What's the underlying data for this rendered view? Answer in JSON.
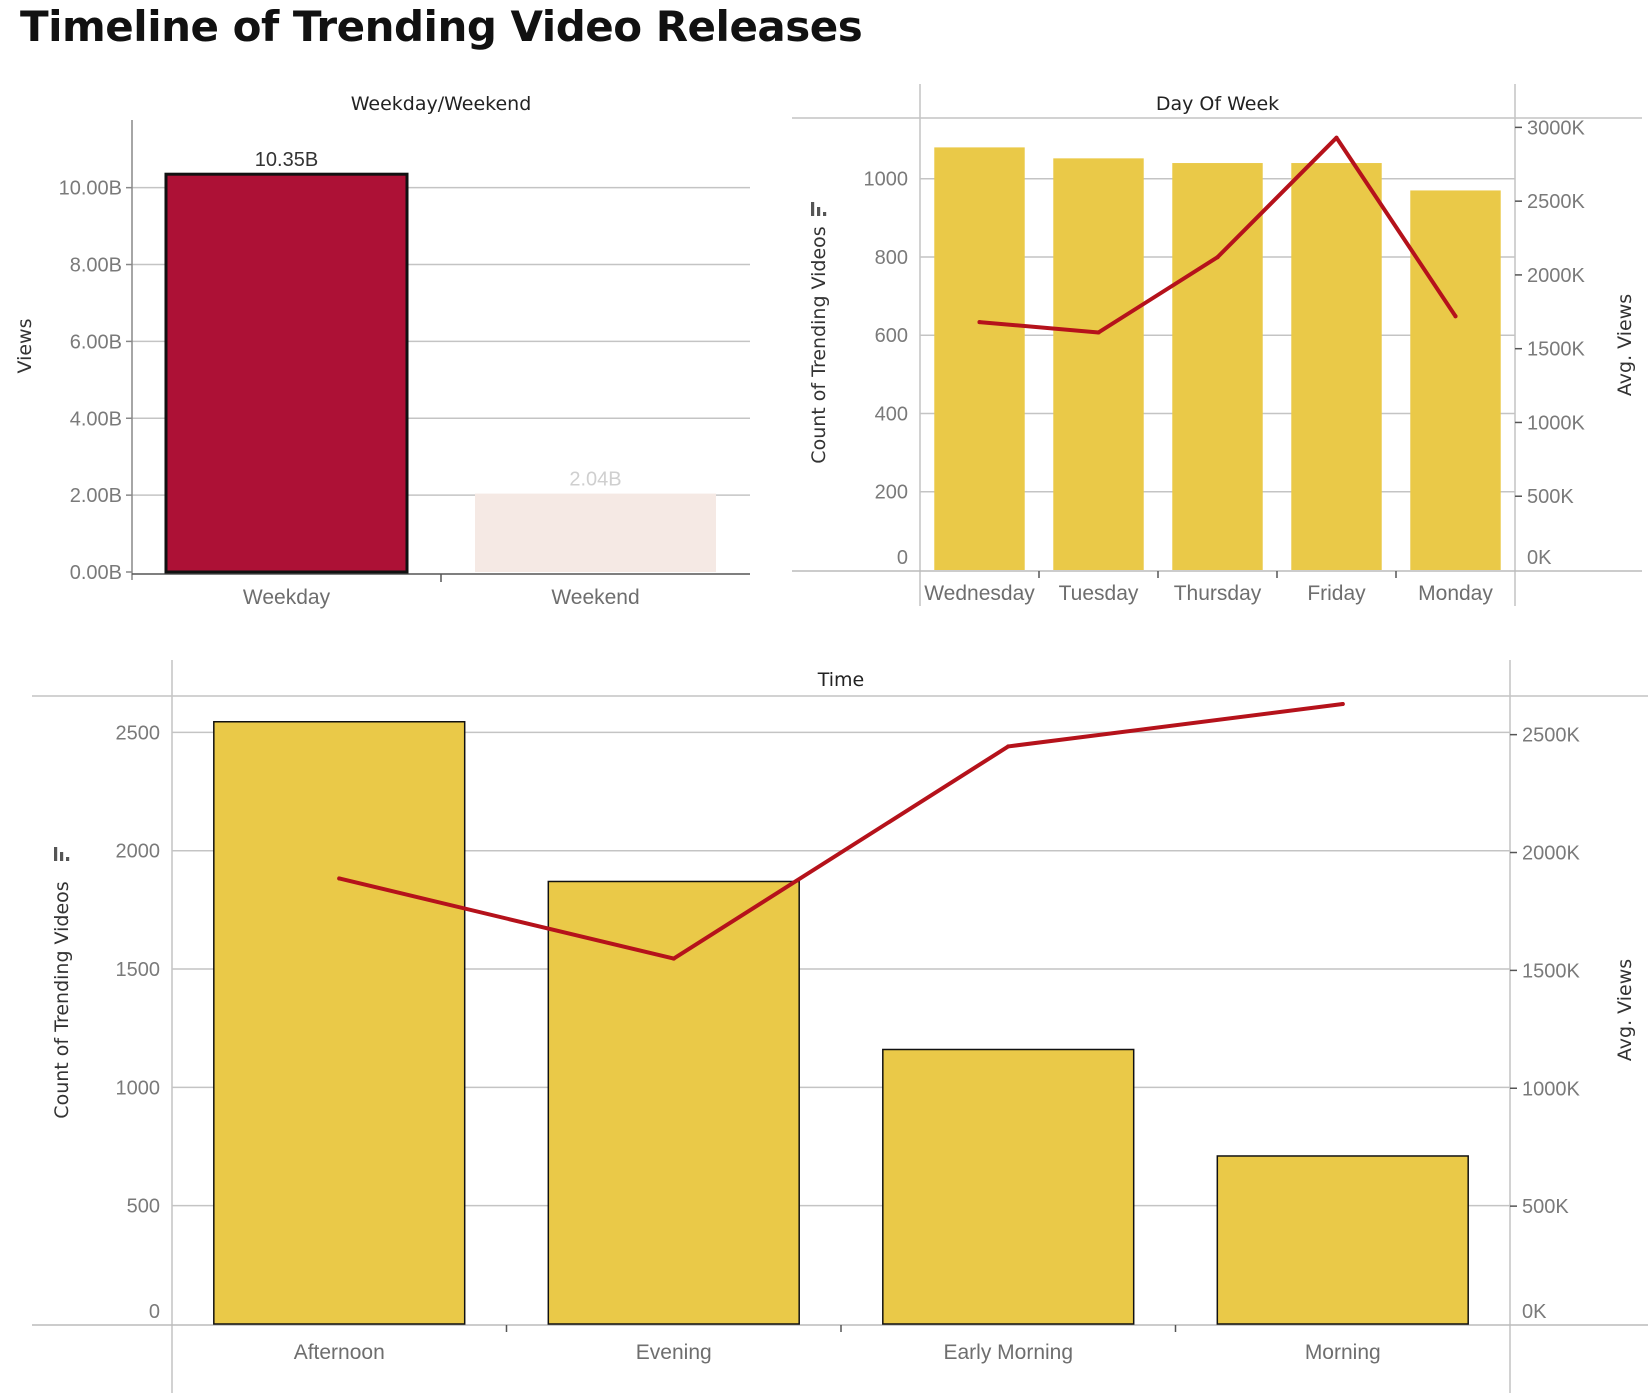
{
  "page": {
    "title": "Timeline of Trending Video Releases"
  },
  "colors": {
    "bar": "#eac948",
    "line": "#b5121b",
    "weekday": "#ad1136",
    "weekend": "#f5e9e4",
    "grid": "#c4c4c4",
    "axis": "#888888"
  },
  "chart_data": [
    {
      "id": "weekday-weekend",
      "type": "bar",
      "title": "Weekday/Weekend",
      "categories": [
        "Weekday",
        "Weekend"
      ],
      "values": [
        10.35,
        2.04
      ],
      "value_unit": "B",
      "data_labels": [
        "10.35B",
        "2.04B"
      ],
      "ylabel": "Views",
      "ylim": [
        0,
        11.5
      ],
      "yticks": [
        0,
        2,
        4,
        6,
        8,
        10
      ],
      "ytick_labels": [
        "0.00B",
        "2.00B",
        "4.00B",
        "6.00B",
        "8.00B",
        "10.00B"
      ],
      "bar_colors": [
        "#ad1136",
        "#f5e9e4"
      ],
      "highlighted": "Weekday",
      "grid": true
    },
    {
      "id": "day-of-week",
      "type": "bar+line",
      "title": "Day Of Week",
      "categories": [
        "Wednesday",
        "Tuesday",
        "Thursday",
        "Friday",
        "Monday"
      ],
      "series": [
        {
          "name": "Count of Trending Videos",
          "type": "bar",
          "axis": "left",
          "values": [
            1080,
            1052,
            1040,
            1040,
            970
          ]
        },
        {
          "name": "Avg. Views",
          "type": "line",
          "axis": "right",
          "values": [
            1680,
            1610,
            2120,
            2930,
            1720
          ]
        }
      ],
      "ylabel_left": "Count of Trending Videos",
      "ylabel_right": "Avg. Views",
      "ylim_left": [
        0,
        1150
      ],
      "ylim_right": [
        0,
        3050
      ],
      "yticks_left": [
        0,
        200,
        400,
        600,
        800,
        1000
      ],
      "ytick_labels_left": [
        "0",
        "200",
        "400",
        "600",
        "800",
        "1000"
      ],
      "yticks_right": [
        0,
        500,
        1000,
        1500,
        2000,
        2500,
        3000
      ],
      "ytick_labels_right": [
        "0K",
        "500K",
        "1000K",
        "1500K",
        "2000K",
        "2500K",
        "3000K"
      ],
      "grid": true
    },
    {
      "id": "time-of-day",
      "type": "bar+line",
      "title": "Time",
      "categories": [
        "Afternoon",
        "Evening",
        "Early Morning",
        "Morning"
      ],
      "series": [
        {
          "name": "Count of Trending Videos",
          "type": "bar",
          "axis": "left",
          "values": [
            2545,
            1870,
            1160,
            710
          ]
        },
        {
          "name": "Avg. Views",
          "type": "line",
          "axis": "right",
          "values": [
            1890,
            1550,
            2450,
            2630
          ]
        }
      ],
      "ylabel_left": "Count of Trending Videos",
      "ylabel_right": "Avg. Views",
      "ylim_left": [
        0,
        2620
      ],
      "ylim_right": [
        0,
        2630
      ],
      "yticks_left": [
        0,
        500,
        1000,
        1500,
        2000,
        2500
      ],
      "ytick_labels_left": [
        "0",
        "500",
        "1000",
        "1500",
        "2000",
        "2500"
      ],
      "yticks_right": [
        0,
        500,
        1000,
        1500,
        2000,
        2500
      ],
      "ytick_labels_right": [
        "0K",
        "500K",
        "1000K",
        "1500K",
        "2000K",
        "2500K"
      ],
      "grid": true
    }
  ]
}
